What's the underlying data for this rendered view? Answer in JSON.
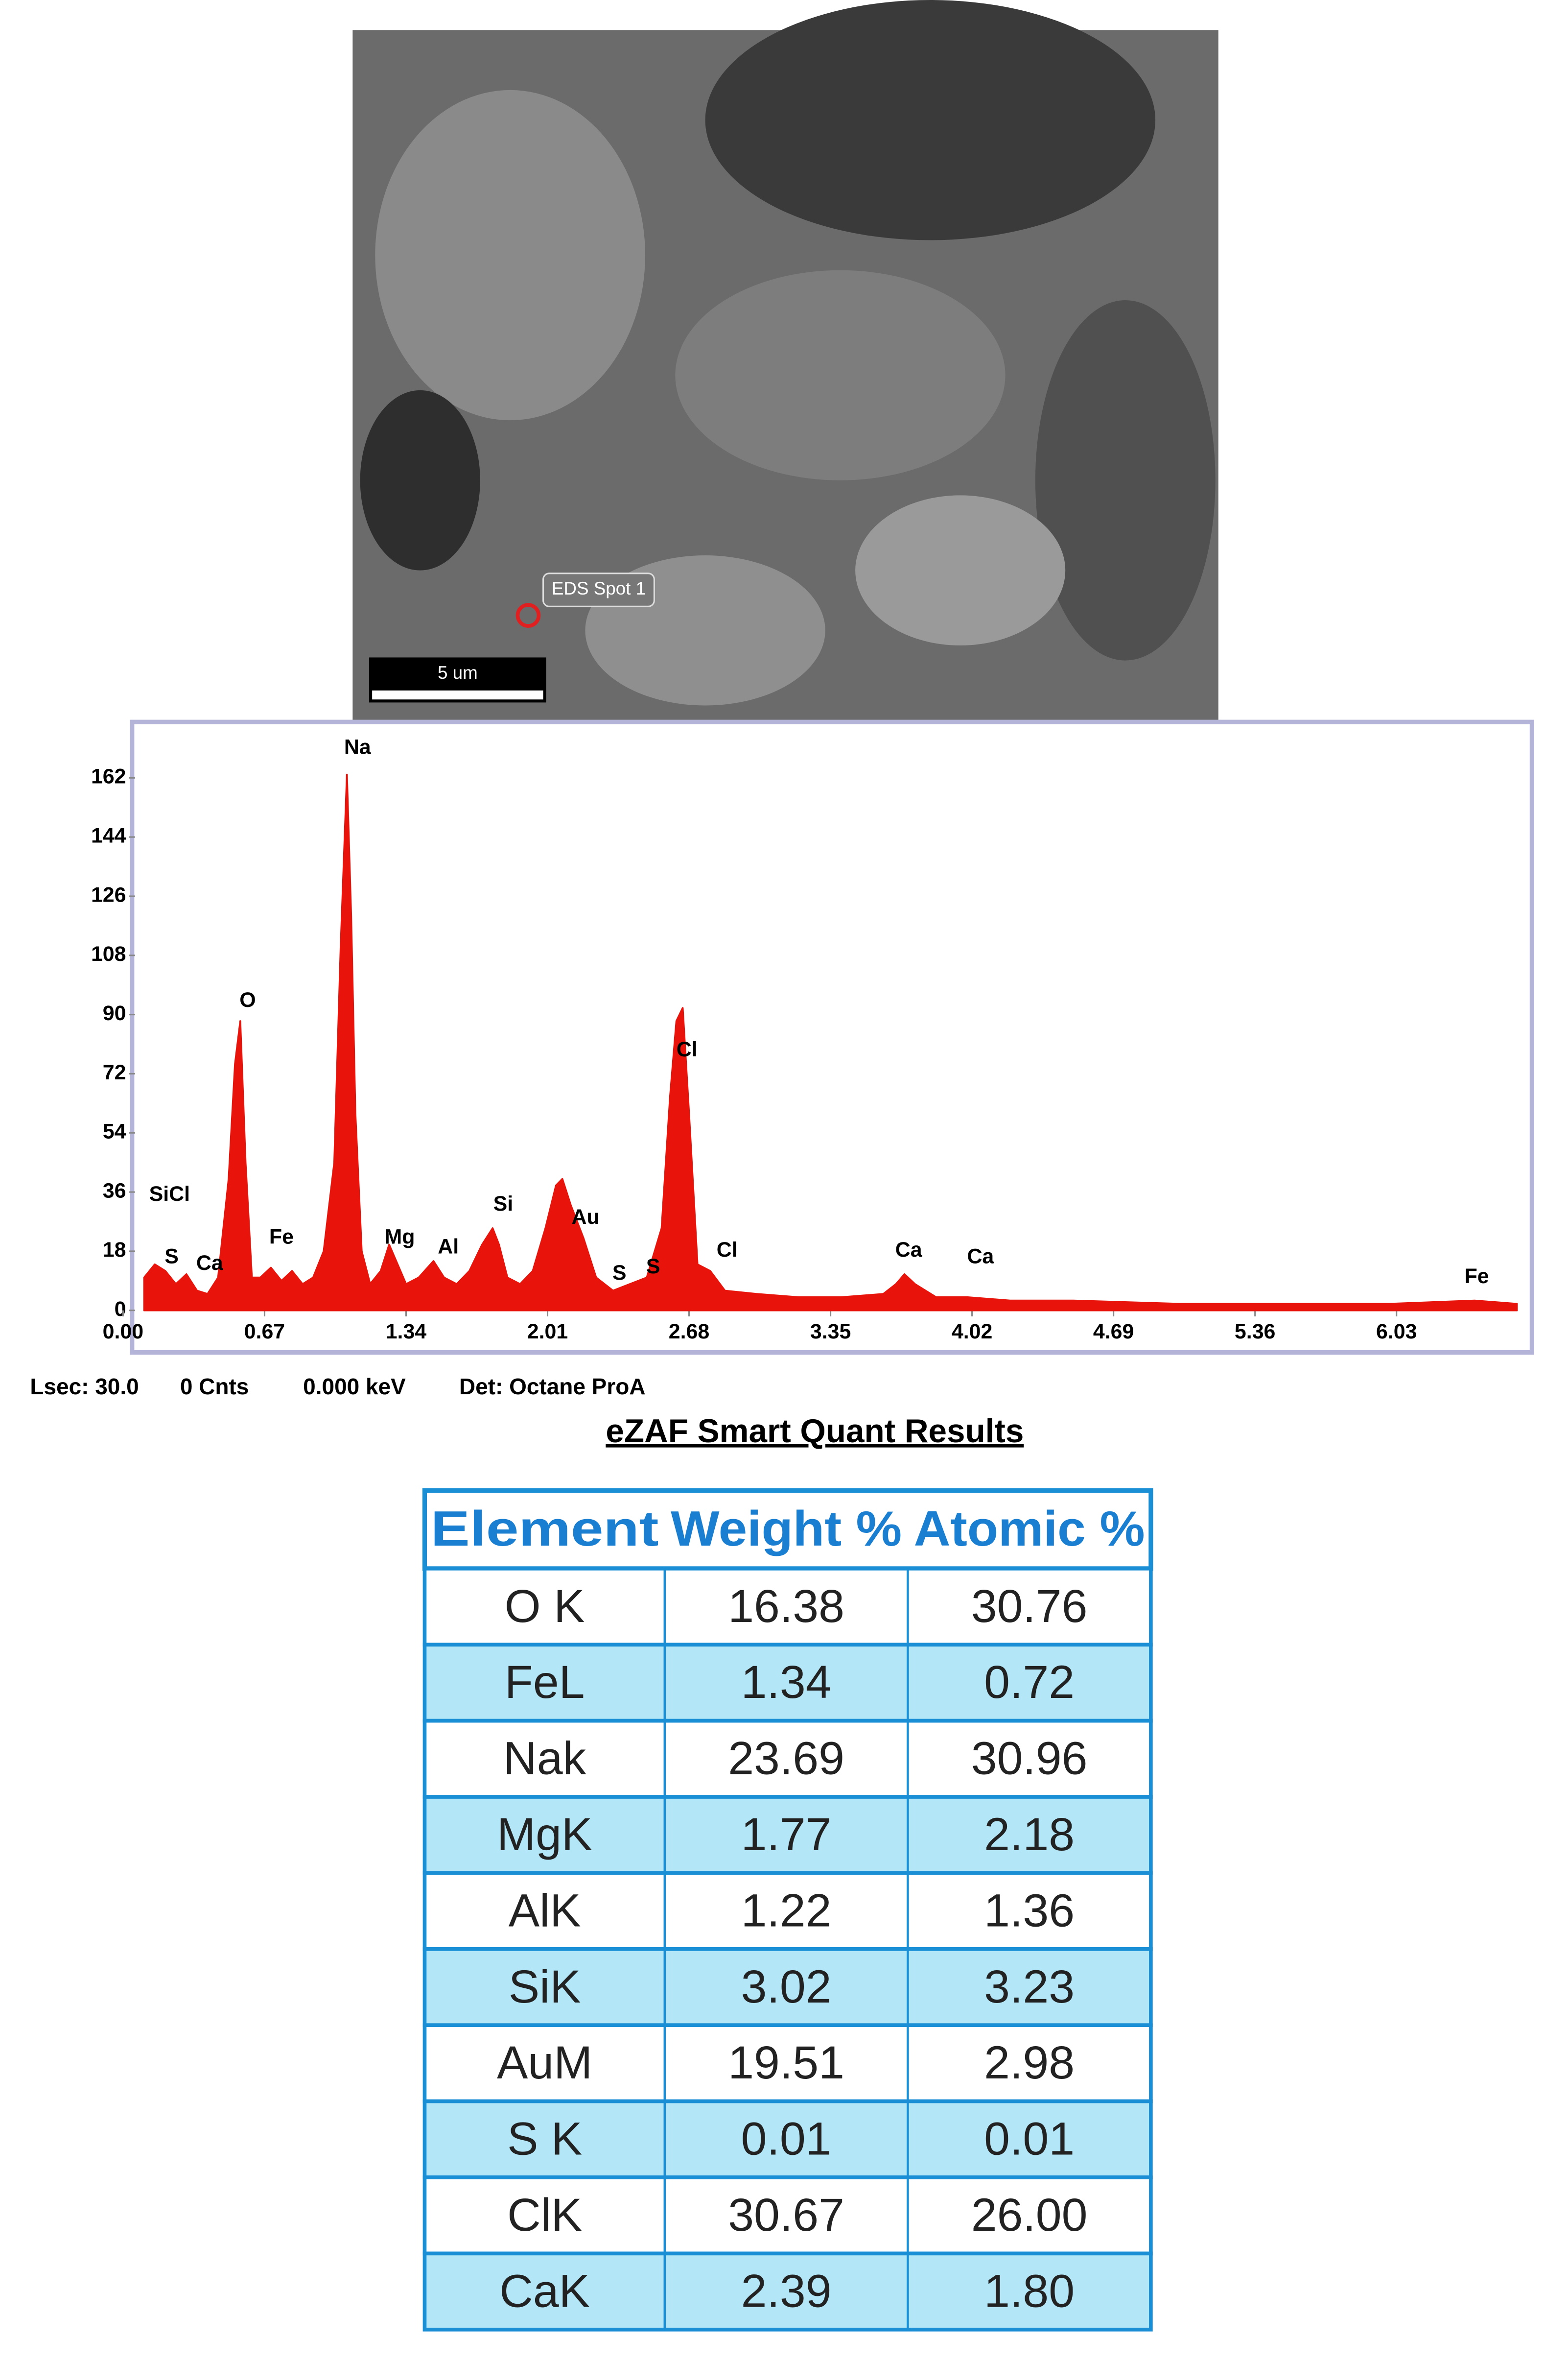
{
  "sem_image": {
    "spot_label": "EDS Spot 1",
    "scale_bar": "5 um"
  },
  "chart_data": {
    "type": "spectrum",
    "color": "#e8140c",
    "x": [
      0.1,
      0.15,
      0.2,
      0.25,
      0.3,
      0.35,
      0.4,
      0.45,
      0.5,
      0.53,
      0.555,
      0.58,
      0.61,
      0.65,
      0.7,
      0.75,
      0.8,
      0.85,
      0.9,
      0.95,
      1.0,
      1.03,
      1.06,
      1.08,
      1.1,
      1.13,
      1.17,
      1.22,
      1.26,
      1.3,
      1.34,
      1.4,
      1.47,
      1.52,
      1.58,
      1.64,
      1.7,
      1.75,
      1.78,
      1.82,
      1.88,
      1.94,
      2.0,
      2.05,
      2.08,
      2.12,
      2.18,
      2.24,
      2.32,
      2.4,
      2.48,
      2.55,
      2.59,
      2.62,
      2.65,
      2.68,
      2.72,
      2.78,
      2.85,
      3.0,
      3.2,
      3.4,
      3.6,
      3.66,
      3.7,
      3.75,
      3.85,
      4.0,
      4.2,
      4.5,
      5.0,
      5.5,
      6.0,
      6.4,
      6.6
    ],
    "values": [
      10,
      14,
      12,
      8,
      11,
      6,
      5,
      10,
      40,
      75,
      88,
      45,
      10,
      10,
      13,
      9,
      12,
      8,
      10,
      18,
      45,
      110,
      163,
      120,
      60,
      18,
      8,
      12,
      20,
      14,
      8,
      10,
      15,
      10,
      8,
      12,
      20,
      25,
      20,
      10,
      8,
      12,
      25,
      38,
      40,
      32,
      22,
      10,
      6,
      8,
      10,
      25,
      65,
      88,
      92,
      60,
      14,
      12,
      6,
      5,
      4,
      4,
      5,
      8,
      11,
      8,
      4,
      4,
      3,
      3,
      2,
      2,
      2,
      3,
      2
    ],
    "xlim": [
      0,
      6.65
    ],
    "ylim": [
      0,
      179
    ],
    "xticks": [
      {
        "value": 0,
        "label": "0.00"
      },
      0.67,
      1.34,
      2.01,
      2.68,
      3.35,
      4.02,
      4.69,
      5.36,
      6.03
    ],
    "yticks": [
      0,
      18,
      36,
      54,
      72,
      90,
      108,
      126,
      144,
      162
    ],
    "peak_labels": [
      {
        "label": "SiCl",
        "x": 0.22,
        "y": 35
      },
      {
        "label": "S",
        "x": 0.23,
        "y": 16
      },
      {
        "label": "Ca",
        "x": 0.41,
        "y": 14
      },
      {
        "label": "O",
        "x": 0.59,
        "y": 94
      },
      {
        "label": "Fe",
        "x": 0.75,
        "y": 22
      },
      {
        "label": "Na",
        "x": 1.11,
        "y": 171
      },
      {
        "label": "Mg",
        "x": 1.31,
        "y": 22
      },
      {
        "label": "Al",
        "x": 1.54,
        "y": 19
      },
      {
        "label": "Si",
        "x": 1.8,
        "y": 32
      },
      {
        "label": "Au",
        "x": 2.19,
        "y": 28
      },
      {
        "label": "S",
        "x": 2.35,
        "y": 11
      },
      {
        "label": "S",
        "x": 2.51,
        "y": 13
      },
      {
        "label": "Cl",
        "x": 2.67,
        "y": 79
      },
      {
        "label": "Cl",
        "x": 2.86,
        "y": 18
      },
      {
        "label": "Ca",
        "x": 3.72,
        "y": 18
      },
      {
        "label": "Ca",
        "x": 4.06,
        "y": 16
      },
      {
        "label": "Fe",
        "x": 6.41,
        "y": 10
      }
    ]
  },
  "status": [
    "Lsec: 30.0",
    "0 Cnts",
    "0.000 keV",
    "Det: Octane ProA"
  ],
  "table": {
    "title": "eZAF Smart Quant Results",
    "header": [
      "Element",
      "Weight %",
      "Atomic %"
    ],
    "rows": [
      [
        "O K",
        "16.38",
        "30.76"
      ],
      [
        "FeL",
        "1.34",
        "0.72"
      ],
      [
        "Nak",
        "23.69",
        "30.96"
      ],
      [
        "MgK",
        "1.77",
        "2.18"
      ],
      [
        "AlK",
        "1.22",
        "1.36"
      ],
      [
        "SiK",
        "3.02",
        "3.23"
      ],
      [
        "AuM",
        "19.51",
        "2.98"
      ],
      [
        "S K",
        "0.01",
        "0.01"
      ],
      [
        "ClK",
        "30.67",
        "26.00"
      ],
      [
        "CaK",
        "2.39",
        "1.80"
      ]
    ]
  }
}
